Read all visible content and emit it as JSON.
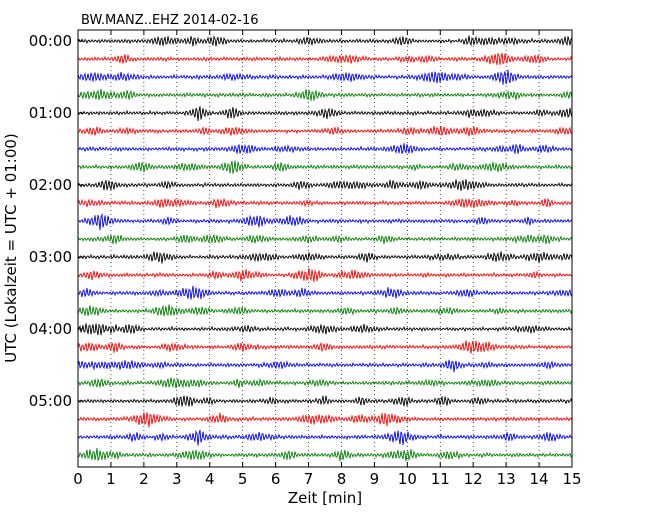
{
  "chart_data": {
    "type": "line",
    "title": "BW.MANZ..EHZ 2014-02-16",
    "xlabel": "Zeit  [min]",
    "ylabel": "UTC (Lokalzeit = UTC + 01:00)",
    "xlim": [
      0,
      15
    ],
    "x_ticks": [
      "0",
      "1",
      "2",
      "3",
      "4",
      "5",
      "6",
      "7",
      "8",
      "9",
      "10",
      "11",
      "12",
      "13",
      "14",
      "15"
    ],
    "y_tick_labels": [
      "00:00",
      "01:00",
      "02:00",
      "03:00",
      "04:00",
      "05:00"
    ],
    "rows_per_hour": 4,
    "row_minutes": 15,
    "row_count": 24,
    "row_colors": [
      "#000000",
      "#ff0000",
      "#0000ff",
      "#008000"
    ],
    "grid": "vertical dotted",
    "legend": "none"
  }
}
